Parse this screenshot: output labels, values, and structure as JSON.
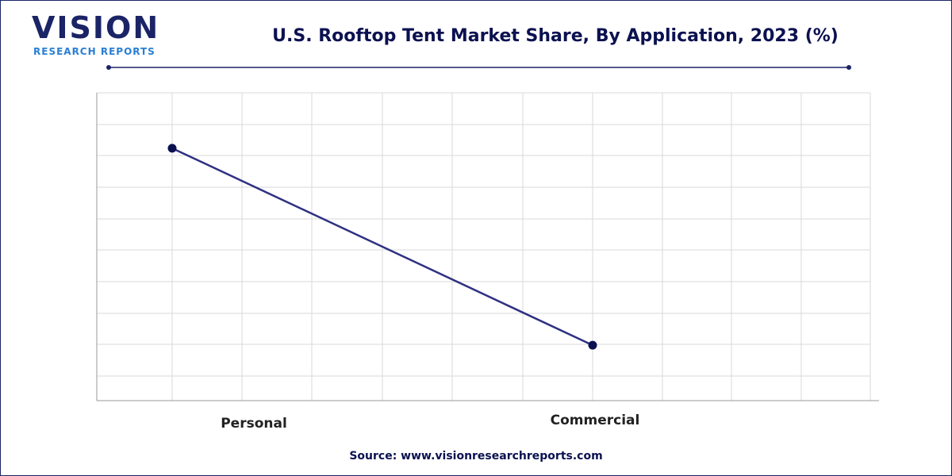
{
  "logo": {
    "name": "VISION",
    "tagline": "RESEARCH REPORTS"
  },
  "chart_data": {
    "type": "line",
    "title": "U.S. Rooftop Tent Market Share, By Application, 2023 (%)",
    "categories": [
      "Personal",
      "Commercial"
    ],
    "values": [
      82,
      18
    ],
    "color": "#2e3182",
    "marker_color": "#0b1150",
    "ylim": [
      0,
      100
    ],
    "grid": true
  },
  "source": "Source: www.visionresearchreports.com"
}
